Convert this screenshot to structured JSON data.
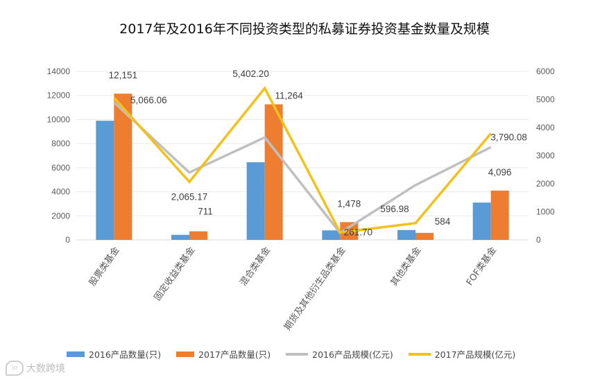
{
  "title": "2017年及2016年不同投资类型的私募证券投资基金数量及规模",
  "watermark": {
    "logo": "lo",
    "text": "大数跨境"
  },
  "legend": [
    {
      "label": "2016产品数量(只)",
      "kind": "bar",
      "color": "#5B9BD5"
    },
    {
      "label": "2017产品数量(只)",
      "kind": "bar",
      "color": "#ED7D31"
    },
    {
      "label": "2016产品规模(亿元)",
      "kind": "line",
      "color": "#BFBFBF"
    },
    {
      "label": "2017产品规模(亿元)",
      "kind": "line",
      "color": "#F4C01A"
    }
  ],
  "chart_data": {
    "type": "bar+line",
    "title": "2017年及2016年不同投资类型的私募证券投资基金数量及规模",
    "categories": [
      "股票类基金",
      "固定收益类基金",
      "混合类基金",
      "期货及其他衍生品类基金",
      "其他类基金",
      "FOF类基金"
    ],
    "y_left": {
      "ylim": [
        0,
        14000
      ],
      "ticks": [
        0,
        2000,
        4000,
        6000,
        8000,
        10000,
        12000,
        14000
      ],
      "tick_labels": [
        "0",
        "2000",
        "4000",
        "6000",
        "8000",
        "10000",
        "12000",
        "14000"
      ]
    },
    "y_right": {
      "ylim": [
        0,
        6000
      ],
      "ticks": [
        0,
        1000,
        2000,
        3000,
        4000,
        5000,
        6000
      ],
      "tick_labels": [
        "0",
        "1000",
        "2000",
        "3000",
        "4000",
        "5000",
        "6000"
      ]
    },
    "series": [
      {
        "name": "2016产品数量(只)",
        "type": "bar",
        "axis": "left",
        "color": "#5B9BD5",
        "values": [
          9900,
          420,
          6450,
          790,
          820,
          3100
        ],
        "labels": [
          "",
          "",
          "",
          "",
          "",
          ""
        ]
      },
      {
        "name": "2017产品数量(只)",
        "type": "bar",
        "axis": "left",
        "color": "#ED7D31",
        "values": [
          12151,
          711,
          11264,
          1478,
          584,
          4096
        ],
        "labels": [
          "12,151",
          "711",
          "11,264",
          "1,478",
          "584",
          "4,096"
        ]
      },
      {
        "name": "2016产品规模(亿元)",
        "type": "line",
        "axis": "right",
        "color": "#BFBFBF",
        "values": [
          4900,
          2400,
          3650,
          250,
          1950,
          3300
        ],
        "labels": [
          "",
          "",
          "",
          "",
          "",
          ""
        ]
      },
      {
        "name": "2017产品规模(亿元)",
        "type": "line",
        "axis": "right",
        "color": "#F4C01A",
        "values": [
          5066.06,
          2065.17,
          5402.2,
          261.7,
          596.98,
          3790.08
        ],
        "labels": [
          "5,066.06",
          "2,065.17",
          "5,402.20",
          "261.70",
          "596.98",
          "3,790.08"
        ]
      }
    ],
    "grid": true,
    "legend_position": "bottom"
  }
}
